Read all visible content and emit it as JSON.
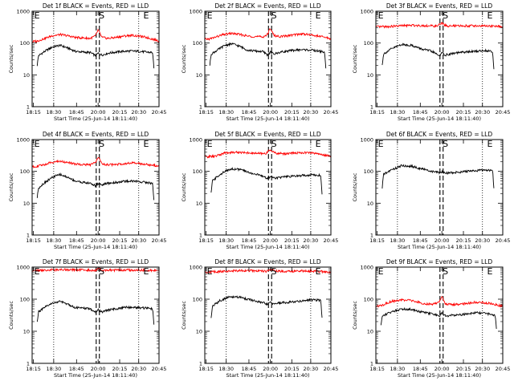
{
  "chart_data": [
    {
      "type": "line",
      "title": "Det 1f BLACK = Events, RED = LLD",
      "ylabel": "Counts/sec",
      "xlabel": "Start Time (25-Jun-14 18:11:40)",
      "xticks": [
        "18:15",
        "18:30",
        "18:45",
        "20:00",
        "20:15",
        "20:30",
        "20:45"
      ],
      "yticks": [
        "1",
        "10",
        "100",
        "1000"
      ],
      "ylog": true,
      "ylim": [
        1,
        1000
      ],
      "markers": [
        "E",
        "S",
        "E"
      ],
      "colors": {
        "events": "#000000",
        "lld": "#ff0000"
      },
      "series": [
        {
          "key": "lld",
          "x": [
            0,
            0.04,
            0.1,
            0.16,
            0.22,
            0.28,
            0.34,
            0.4,
            0.46,
            0.5,
            0.52,
            0.55,
            0.6,
            0.66,
            0.72,
            0.78,
            0.84,
            0.9,
            0.96,
            1
          ],
          "values": [
            110,
            115,
            140,
            170,
            185,
            170,
            150,
            145,
            140,
            170,
            260,
            150,
            140,
            150,
            165,
            175,
            165,
            150,
            130,
            115
          ]
        },
        {
          "key": "events",
          "x": [
            0.04,
            0.05,
            0.1,
            0.16,
            0.22,
            0.28,
            0.34,
            0.4,
            0.46,
            0.5,
            0.52,
            0.55,
            0.6,
            0.66,
            0.72,
            0.78,
            0.84,
            0.9,
            0.95,
            0.96
          ],
          "values": [
            20,
            40,
            55,
            75,
            85,
            70,
            55,
            52,
            50,
            40,
            48,
            42,
            48,
            52,
            55,
            56,
            55,
            52,
            50,
            15
          ]
        }
      ]
    },
    {
      "type": "line",
      "title": "Det 2f BLACK = Events, RED = LLD",
      "ylabel": "Counts/sec",
      "xlabel": "Start Time (25-Jun-14 18:11:40)",
      "xticks": [
        "18:15",
        "18:30",
        "18:45",
        "20:00",
        "20:15",
        "20:30",
        "20:45"
      ],
      "yticks": [
        "1",
        "10",
        "100",
        "1000"
      ],
      "ylog": true,
      "ylim": [
        1,
        1000
      ],
      "markers": [
        "E",
        "S",
        "E"
      ],
      "colors": {
        "events": "#000000",
        "lld": "#ff0000"
      },
      "series": [
        {
          "key": "lld",
          "x": [
            0,
            0.04,
            0.1,
            0.16,
            0.22,
            0.28,
            0.34,
            0.4,
            0.46,
            0.5,
            0.52,
            0.55,
            0.6,
            0.66,
            0.72,
            0.78,
            0.84,
            0.9,
            0.96,
            1
          ],
          "values": [
            130,
            135,
            160,
            190,
            200,
            185,
            165,
            160,
            155,
            190,
            300,
            170,
            160,
            170,
            185,
            195,
            180,
            165,
            150,
            135
          ]
        },
        {
          "key": "events",
          "x": [
            0.04,
            0.05,
            0.1,
            0.16,
            0.22,
            0.28,
            0.34,
            0.4,
            0.46,
            0.5,
            0.52,
            0.55,
            0.6,
            0.66,
            0.72,
            0.78,
            0.84,
            0.9,
            0.95,
            0.96
          ],
          "values": [
            20,
            45,
            60,
            85,
            95,
            78,
            60,
            56,
            54,
            42,
            52,
            45,
            52,
            56,
            60,
            62,
            60,
            56,
            52,
            15
          ]
        }
      ]
    },
    {
      "type": "line",
      "title": "Det 3f BLACK = Events, RED = LLD",
      "ylabel": "Counts/sec",
      "xlabel": "Start Time (25-Jun-14 18:11:40)",
      "xticks": [
        "18:15",
        "18:30",
        "18:45",
        "20:00",
        "20:15",
        "20:30",
        "20:45"
      ],
      "yticks": [
        "1",
        "10",
        "100",
        "1000"
      ],
      "ylog": true,
      "ylim": [
        1,
        1000
      ],
      "markers": [
        "E",
        "S",
        "E"
      ],
      "colors": {
        "events": "#000000",
        "lld": "#ff0000"
      },
      "series": [
        {
          "key": "lld",
          "x": [
            0,
            0.1,
            0.2,
            0.3,
            0.4,
            0.48,
            0.52,
            0.56,
            0.65,
            0.75,
            0.85,
            0.95,
            1
          ],
          "values": [
            320,
            330,
            350,
            360,
            350,
            340,
            420,
            340,
            345,
            350,
            345,
            335,
            325
          ]
        },
        {
          "key": "events",
          "x": [
            0.05,
            0.06,
            0.12,
            0.2,
            0.28,
            0.36,
            0.44,
            0.5,
            0.52,
            0.55,
            0.62,
            0.7,
            0.78,
            0.86,
            0.92,
            0.93
          ],
          "values": [
            20,
            45,
            65,
            90,
            85,
            65,
            55,
            40,
            48,
            42,
            48,
            52,
            55,
            58,
            55,
            15
          ]
        }
      ]
    },
    {
      "type": "line",
      "title": "Det 4f BLACK = Events, RED = LLD",
      "ylabel": "Counts/sec",
      "xlabel": "Start Time (25-Jun-14 18:11:40)",
      "xticks": [
        "18:15",
        "18:30",
        "18:45",
        "20:00",
        "20:15",
        "20:30",
        "20:45"
      ],
      "yticks": [
        "1",
        "10",
        "100",
        "1000"
      ],
      "ylog": true,
      "ylim": [
        1,
        1000
      ],
      "markers": [
        "E",
        "S",
        "E"
      ],
      "colors": {
        "events": "#000000",
        "lld": "#ff0000"
      },
      "series": [
        {
          "key": "lld",
          "x": [
            0,
            0.04,
            0.1,
            0.16,
            0.22,
            0.28,
            0.34,
            0.4,
            0.46,
            0.5,
            0.52,
            0.55,
            0.6,
            0.66,
            0.72,
            0.78,
            0.84,
            0.9,
            0.96,
            1
          ],
          "values": [
            140,
            145,
            165,
            195,
            210,
            190,
            170,
            165,
            160,
            190,
            290,
            170,
            160,
            165,
            175,
            185,
            175,
            165,
            155,
            145
          ]
        },
        {
          "key": "events",
          "x": [
            0.04,
            0.05,
            0.1,
            0.16,
            0.22,
            0.28,
            0.34,
            0.4,
            0.46,
            0.5,
            0.52,
            0.55,
            0.6,
            0.66,
            0.72,
            0.78,
            0.84,
            0.9,
            0.95,
            0.96
          ],
          "values": [
            15,
            30,
            45,
            65,
            80,
            65,
            50,
            45,
            42,
            35,
            42,
            38,
            42,
            45,
            48,
            50,
            48,
            45,
            42,
            12
          ]
        }
      ]
    },
    {
      "type": "line",
      "title": "Det 5f BLACK = Events, RED = LLD",
      "ylabel": "Counts/sec",
      "xlabel": "Start Time (25-Jun-14 18:11:40)",
      "xticks": [
        "18:15",
        "18:30",
        "18:45",
        "20:00",
        "20:15",
        "20:30",
        "20:45"
      ],
      "yticks": [
        "1",
        "10",
        "100",
        "1000"
      ],
      "ylog": true,
      "ylim": [
        1,
        1000
      ],
      "markers": [
        "E",
        "S",
        "E"
      ],
      "colors": {
        "events": "#000000",
        "lld": "#ff0000"
      },
      "series": [
        {
          "key": "lld",
          "x": [
            0,
            0.08,
            0.16,
            0.24,
            0.32,
            0.4,
            0.48,
            0.52,
            0.56,
            0.64,
            0.72,
            0.8,
            0.88,
            0.96,
            1
          ],
          "values": [
            290,
            295,
            380,
            400,
            390,
            370,
            360,
            480,
            370,
            360,
            380,
            390,
            370,
            320,
            300
          ]
        },
        {
          "key": "events",
          "x": [
            0.05,
            0.06,
            0.12,
            0.2,
            0.28,
            0.36,
            0.44,
            0.5,
            0.52,
            0.55,
            0.62,
            0.7,
            0.78,
            0.86,
            0.92,
            0.93
          ],
          "values": [
            20,
            50,
            80,
            120,
            115,
            90,
            75,
            60,
            70,
            62,
            66,
            70,
            75,
            78,
            75,
            20
          ]
        }
      ]
    },
    {
      "type": "line",
      "title": "Det 6f BLACK = Events, RED = LLD",
      "ylabel": "Counts/sec",
      "xlabel": "Start Time (25-Jun-14 18:11:40)",
      "xticks": [
        "18:15",
        "18:30",
        "18:45",
        "20:00",
        "20:15",
        "20:30",
        "20:45"
      ],
      "yticks": [
        "1",
        "10",
        "100",
        "1000"
      ],
      "ylog": true,
      "ylim": [
        1,
        1000
      ],
      "markers": [
        "E",
        "S",
        "E"
      ],
      "colors": {
        "events": "#000000",
        "lld": "#ff0000"
      },
      "series": [
        {
          "key": "lld",
          "x": [],
          "values": []
        },
        {
          "key": "events",
          "x": [
            0.05,
            0.06,
            0.12,
            0.2,
            0.28,
            0.36,
            0.44,
            0.5,
            0.52,
            0.55,
            0.62,
            0.7,
            0.78,
            0.86,
            0.92,
            0.93
          ],
          "values": [
            30,
            80,
            110,
            150,
            145,
            120,
            100,
            90,
            96,
            88,
            92,
            98,
            105,
            110,
            108,
            30
          ]
        }
      ]
    },
    {
      "type": "line",
      "title": "Det 7f BLACK = Events, RED = LLD",
      "ylabel": "Counts/sec",
      "xlabel": "Start Time (25-Jun-14 18:11:40)",
      "xticks": [
        "18:15",
        "18:30",
        "18:45",
        "20:00",
        "20:15",
        "20:30",
        "20:45"
      ],
      "yticks": [
        "1",
        "10",
        "100",
        "1000"
      ],
      "ylog": true,
      "ylim": [
        1,
        1000
      ],
      "markers": [
        "E",
        "S",
        "E"
      ],
      "colors": {
        "events": "#000000",
        "lld": "#ff0000"
      },
      "series": [
        {
          "key": "lld",
          "x": [
            0,
            0.1,
            0.2,
            0.3,
            0.4,
            0.5,
            0.52,
            0.56,
            0.65,
            0.75,
            0.85,
            0.95,
            1
          ],
          "values": [
            780,
            800,
            820,
            830,
            810,
            800,
            900,
            810,
            800,
            810,
            800,
            780,
            770
          ]
        },
        {
          "key": "events",
          "x": [
            0.04,
            0.05,
            0.1,
            0.16,
            0.22,
            0.28,
            0.34,
            0.4,
            0.46,
            0.5,
            0.52,
            0.55,
            0.6,
            0.66,
            0.72,
            0.78,
            0.84,
            0.9,
            0.95,
            0.96
          ],
          "values": [
            20,
            40,
            55,
            75,
            85,
            70,
            55,
            52,
            50,
            38,
            46,
            40,
            46,
            50,
            55,
            56,
            55,
            52,
            50,
            15
          ]
        }
      ]
    },
    {
      "type": "line",
      "title": "Det 8f BLACK = Events, RED = LLD",
      "ylabel": "Counts/sec",
      "xlabel": "Start Time (25-Jun-14 18:11:40)",
      "xticks": [
        "18:15",
        "18:30",
        "18:45",
        "20:00",
        "20:15",
        "20:30",
        "20:45"
      ],
      "yticks": [
        "1",
        "10",
        "100",
        "1000"
      ],
      "ylog": true,
      "ylim": [
        1,
        1000
      ],
      "markers": [
        "E",
        "S",
        "E"
      ],
      "colors": {
        "events": "#000000",
        "lld": "#ff0000"
      },
      "series": [
        {
          "key": "lld",
          "x": [
            0,
            0.1,
            0.2,
            0.3,
            0.4,
            0.5,
            0.52,
            0.56,
            0.65,
            0.75,
            0.85,
            0.95,
            1
          ],
          "values": [
            700,
            720,
            760,
            780,
            760,
            740,
            850,
            750,
            740,
            760,
            750,
            720,
            700
          ]
        },
        {
          "key": "events",
          "x": [
            0.05,
            0.06,
            0.12,
            0.2,
            0.28,
            0.36,
            0.44,
            0.5,
            0.52,
            0.55,
            0.62,
            0.7,
            0.78,
            0.86,
            0.92,
            0.93
          ],
          "values": [
            25,
            60,
            90,
            120,
            115,
            95,
            80,
            70,
            78,
            72,
            78,
            82,
            90,
            95,
            92,
            25
          ]
        }
      ]
    },
    {
      "type": "line",
      "title": "Det 9f BLACK = Events, RED = LLD",
      "ylabel": "Counts/sec",
      "xlabel": "Start Time (25-Jun-14 18:11:40)",
      "xticks": [
        "18:15",
        "18:30",
        "18:45",
        "20:00",
        "20:15",
        "20:30",
        "20:45"
      ],
      "yticks": [
        "1",
        "10",
        "100",
        "1000"
      ],
      "ylog": true,
      "ylim": [
        1,
        1000
      ],
      "markers": [
        "E",
        "S",
        "E"
      ],
      "colors": {
        "events": "#000000",
        "lld": "#ff0000"
      },
      "series": [
        {
          "key": "lld",
          "x": [
            0,
            0.05,
            0.12,
            0.2,
            0.28,
            0.36,
            0.44,
            0.5,
            0.52,
            0.55,
            0.62,
            0.7,
            0.78,
            0.86,
            0.94,
            1
          ],
          "values": [
            60,
            65,
            85,
            95,
            90,
            75,
            68,
            80,
            120,
            70,
            68,
            72,
            80,
            78,
            68,
            60
          ]
        },
        {
          "key": "events",
          "x": [
            0.04,
            0.05,
            0.12,
            0.2,
            0.28,
            0.36,
            0.44,
            0.5,
            0.52,
            0.55,
            0.62,
            0.7,
            0.78,
            0.86,
            0.94,
            0.95
          ],
          "values": [
            15,
            30,
            40,
            50,
            48,
            40,
            35,
            30,
            36,
            30,
            32,
            34,
            38,
            36,
            32,
            12
          ]
        }
      ]
    }
  ]
}
